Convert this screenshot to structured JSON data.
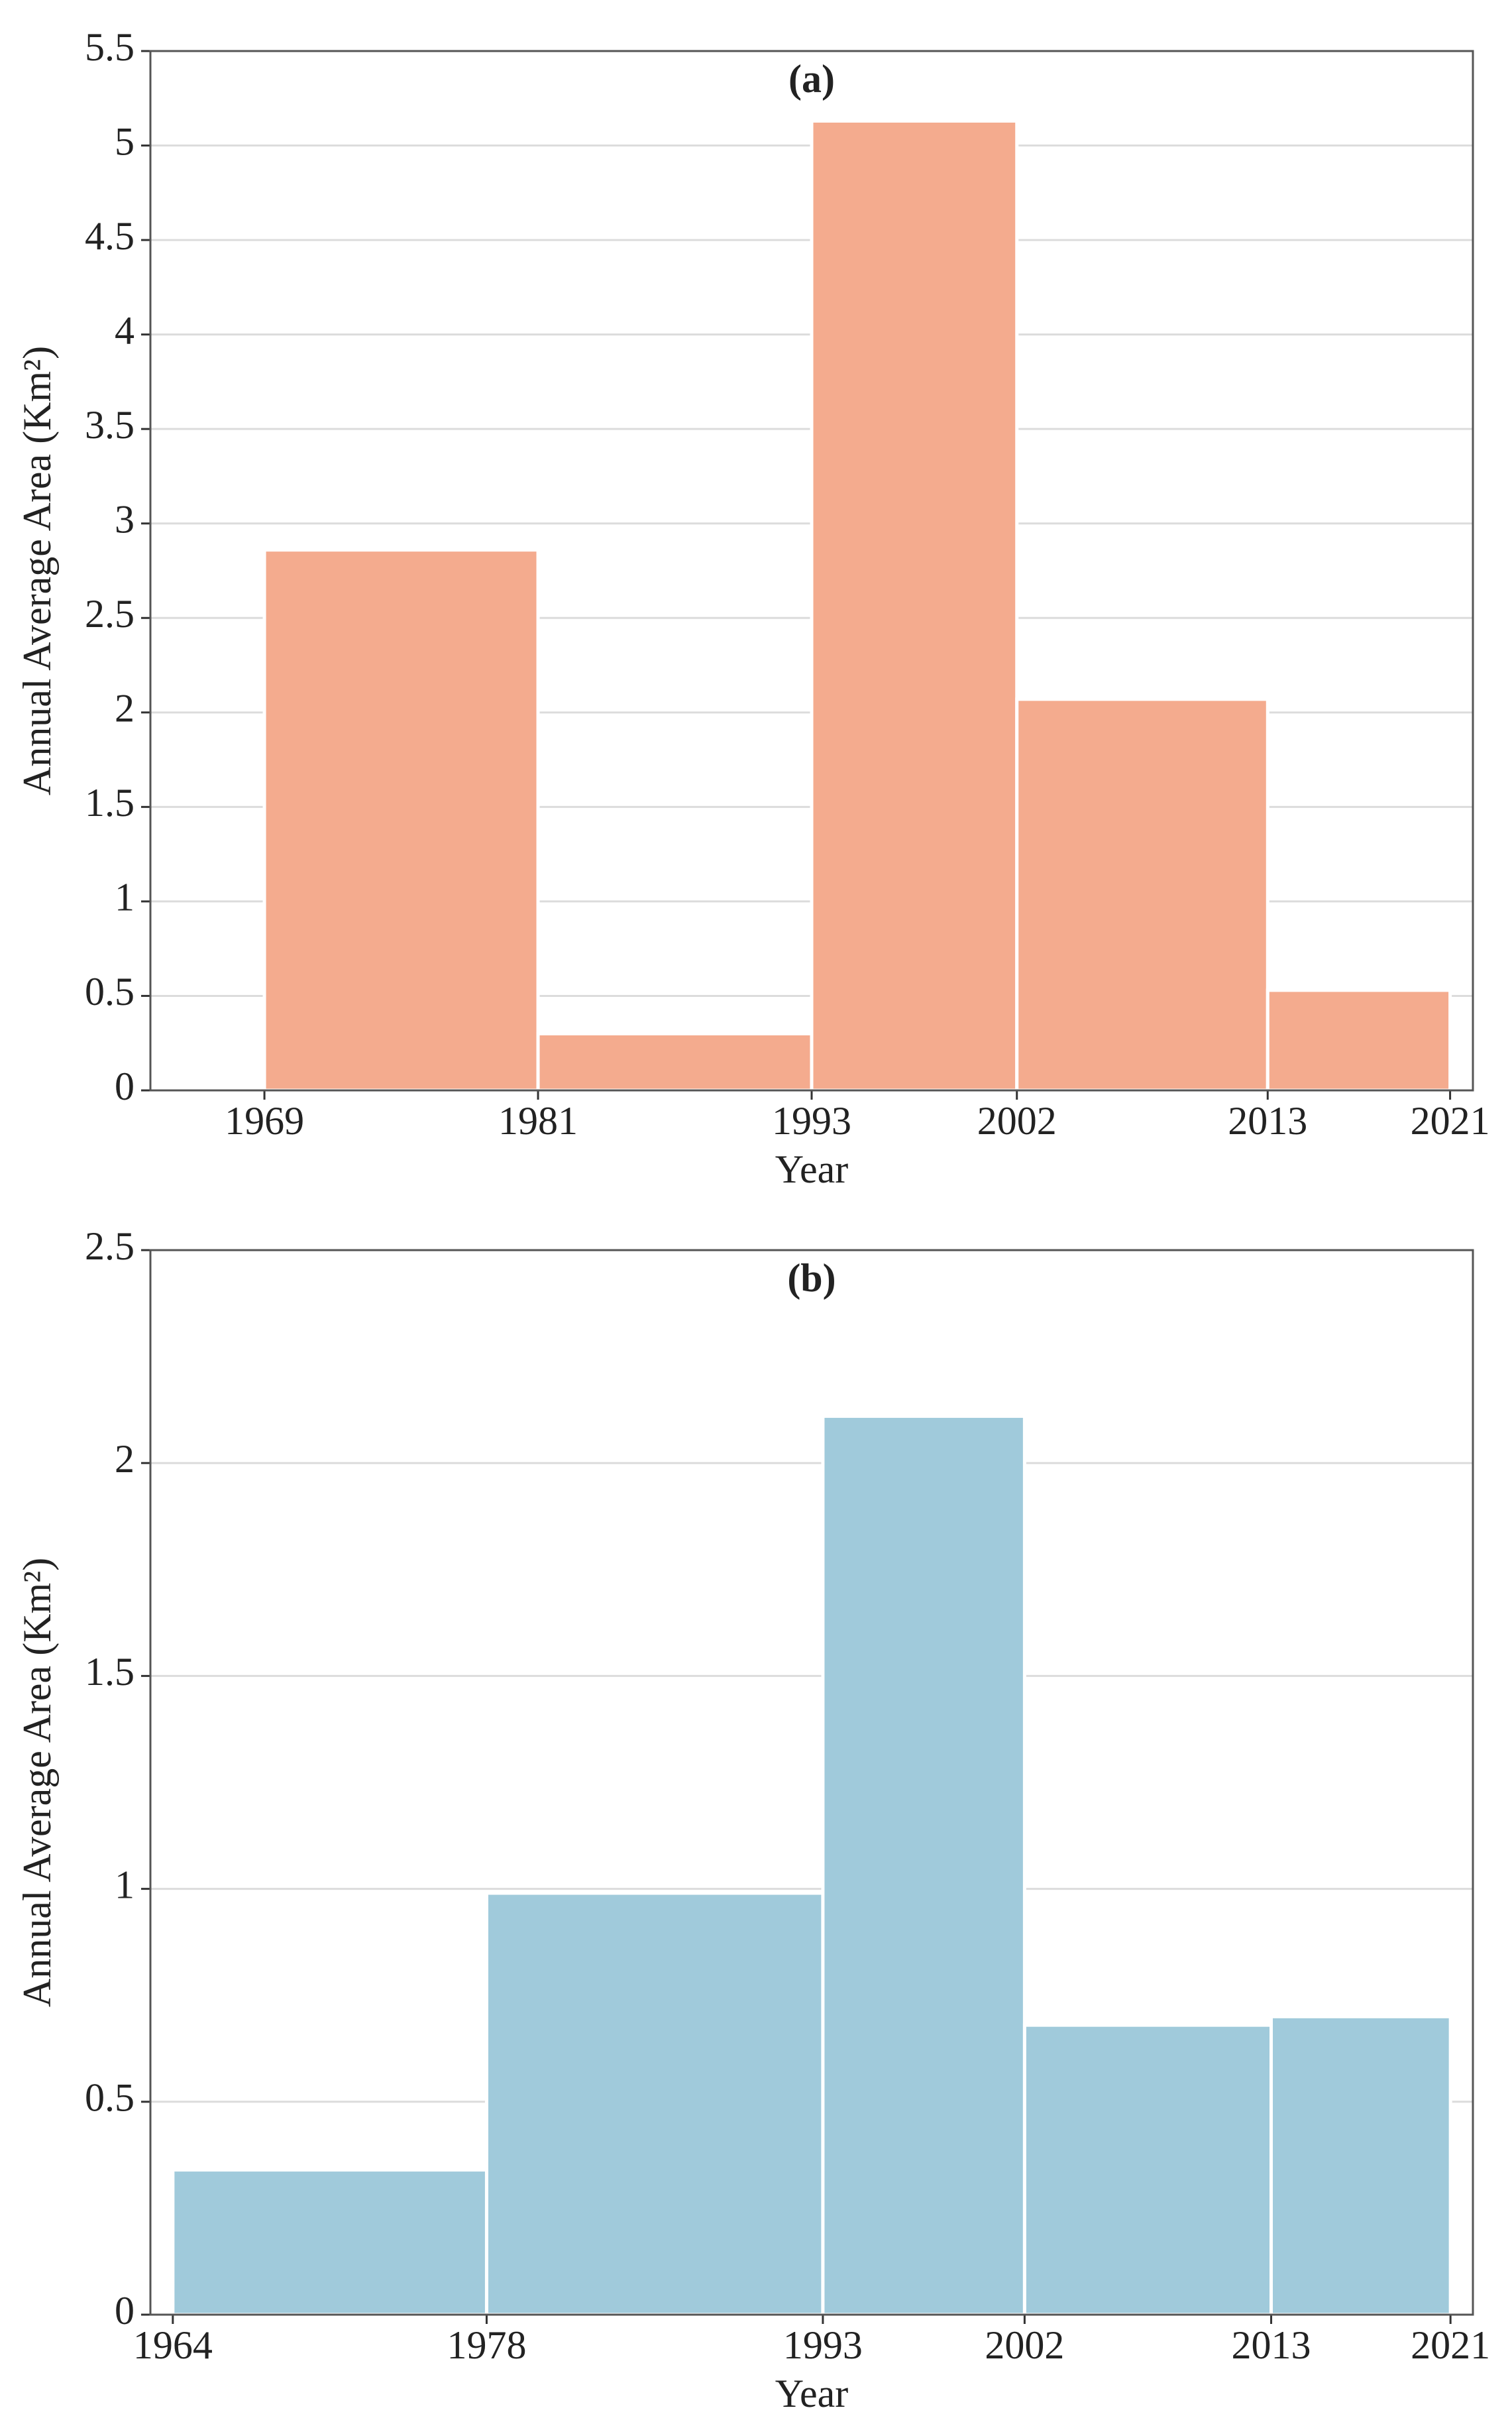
{
  "chart_data": [
    {
      "type": "histogram",
      "title": "(a)",
      "x_label": "Year",
      "y_label": "Annual Average Area (Km²)",
      "bins": [
        1969,
        1981,
        1993,
        2002,
        2013,
        2021
      ],
      "values": [
        2.86,
        0.3,
        5.13,
        2.07,
        0.53
      ],
      "color": "#f4ab8e",
      "xlim": [
        1964,
        2022
      ],
      "ylim": [
        0,
        5.5
      ],
      "yticks": [
        0,
        0.5,
        1,
        1.5,
        2,
        2.5,
        3,
        3.5,
        4,
        4.5,
        5,
        5.5
      ],
      "grid": true
    },
    {
      "type": "histogram",
      "title": "(b)",
      "x_label": "Year",
      "y_label": "Annual Average Area (Km²)",
      "bins": [
        1964,
        1978,
        1993,
        2002,
        2013,
        2021
      ],
      "values": [
        0.34,
        0.99,
        2.11,
        0.68,
        0.7
      ],
      "color": "#a0cadb",
      "xlim": [
        1963,
        2022
      ],
      "ylim": [
        0,
        2.5
      ],
      "yticks": [
        0,
        0.5,
        1,
        1.5,
        2,
        2.5
      ],
      "grid": true
    }
  ]
}
